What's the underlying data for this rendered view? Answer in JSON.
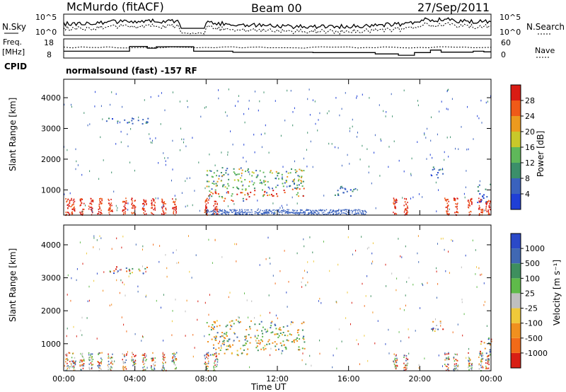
{
  "header": {
    "station": "McMurdo (fitACF)",
    "beam": "Beam 00",
    "date": "27/Sep/2011",
    "cpid_label": "CPID",
    "cpid_value": "normalsound (fast) -157 RF"
  },
  "summary_panels": {
    "nsky_label": "N.Sky",
    "nsky_ticks": [
      "10^5",
      "10^0"
    ],
    "nsearch_label": "N.Search",
    "nsearch_ticks": [
      "10^5",
      "10^0"
    ],
    "freq_label_1": "Freq.",
    "freq_label_2": "[MHz]",
    "freq_ticks": [
      18,
      8
    ],
    "nave_label": "Nave",
    "nave_ticks": [
      60,
      0
    ],
    "freq_steps": [
      {
        "t": 0,
        "v": 11.0
      },
      {
        "t": 3.7,
        "v": 14.5
      },
      {
        "t": 4.7,
        "v": 13.2
      },
      {
        "t": 5.2,
        "v": 14.3
      },
      {
        "t": 7.3,
        "v": 11.0
      },
      {
        "t": 9.5,
        "v": 10.2
      },
      {
        "t": 14.0,
        "v": 10.0
      },
      {
        "t": 17.5,
        "v": 9.0
      },
      {
        "t": 18.8,
        "v": 8.0
      },
      {
        "t": 19.7,
        "v": 10.0
      },
      {
        "t": 20.6,
        "v": 11.8
      },
      {
        "t": 21.2,
        "v": 10.3
      },
      {
        "t": 23.0,
        "v": 11.0
      },
      {
        "t": 23.6,
        "v": 10.5
      },
      {
        "t": 24.0,
        "v": 10.5
      }
    ]
  },
  "chart_data": [
    {
      "type": "heatmap",
      "title": "",
      "xlabel": "",
      "ylabel": "Slant Range [km]",
      "xlim": [
        0,
        24
      ],
      "ylim": [
        180,
        4600
      ],
      "y_ticks": [
        1000,
        2000,
        3000,
        4000
      ],
      "colorbar_label": "Power [dB]",
      "colorbar_ticks": [
        4,
        8,
        12,
        16,
        20,
        24,
        28
      ],
      "colorbar_colors": [
        "#1f3fd6",
        "#3a62bd",
        "#3b8f6a",
        "#5fb85a",
        "#c8c82a",
        "#ec9a1e",
        "#ef5a18",
        "#d91c14"
      ],
      "scatter_regions": [
        {
          "t0": 8.0,
          "t1": 10.5,
          "r0": 650,
          "r1": 1750,
          "kind": "main"
        },
        {
          "t0": 10.5,
          "t1": 13.5,
          "r0": 800,
          "r1": 1700,
          "kind": "main"
        },
        {
          "t0": 20.6,
          "t1": 21.3,
          "r0": 1400,
          "r1": 1800,
          "kind": "patch"
        },
        {
          "t0": 23.2,
          "t1": 24.0,
          "r0": 600,
          "r1": 1200,
          "kind": "patch"
        },
        {
          "t0": 15.2,
          "t1": 16.5,
          "r0": 800,
          "r1": 1150,
          "kind": "patch"
        },
        {
          "t0": 2.3,
          "t1": 4.8,
          "r0": 3150,
          "r1": 3350,
          "kind": "band"
        }
      ]
    },
    {
      "type": "heatmap",
      "title": "",
      "xlabel": "Time UT",
      "ylabel": "Slant Range [km]",
      "xlim": [
        0,
        24
      ],
      "ylim": [
        180,
        4600
      ],
      "x_ticks": [
        "00:00",
        "04:00",
        "08:00",
        "12:00",
        "16:00",
        "20:00",
        "00:00"
      ],
      "y_ticks": [
        1000,
        2000,
        3000,
        4000
      ],
      "colorbar_label": "Velocity [m s⁻¹]",
      "colorbar_ticks": [
        1000,
        500,
        100,
        25,
        -25,
        -100,
        -500,
        -1000
      ],
      "colorbar_colors": [
        "#2b49c8",
        "#4068b3",
        "#3e8f5e",
        "#5fba4a",
        "#bfbfbf",
        "#efc93a",
        "#f0901e",
        "#f26a18",
        "#d81f14"
      ],
      "scatter_regions": [
        {
          "t0": 8.0,
          "t1": 10.5,
          "r0": 650,
          "r1": 1750,
          "kind": "main"
        },
        {
          "t0": 10.5,
          "t1": 13.5,
          "r0": 800,
          "r1": 1700,
          "kind": "main"
        },
        {
          "t0": 20.6,
          "t1": 21.3,
          "r0": 1400,
          "r1": 1800,
          "kind": "patch"
        },
        {
          "t0": 23.2,
          "t1": 24.0,
          "r0": 600,
          "r1": 1200,
          "kind": "patch"
        },
        {
          "t0": 2.3,
          "t1": 4.8,
          "r0": 3150,
          "r1": 3350,
          "kind": "band"
        }
      ]
    }
  ]
}
